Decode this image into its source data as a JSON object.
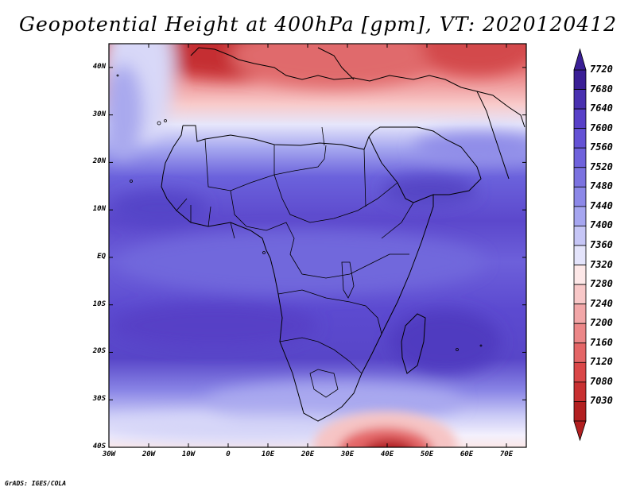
{
  "title": "Geopotential Height at 400hPa [gpm], VT: 2020120412",
  "credit": "GrADS: IGES/COLA",
  "map": {
    "variable": "Geopotential Height",
    "level": "400hPa",
    "units": "gpm",
    "valid_time": "2020120412",
    "lon_range": [
      -30,
      75
    ],
    "lat_range": [
      -40,
      45
    ],
    "lat_labels": [
      {
        "value": 40,
        "text": "40N"
      },
      {
        "value": 30,
        "text": "30N"
      },
      {
        "value": 20,
        "text": "20N"
      },
      {
        "value": 10,
        "text": "10N"
      },
      {
        "value": 0,
        "text": "EQ"
      },
      {
        "value": -10,
        "text": "10S"
      },
      {
        "value": -20,
        "text": "20S"
      },
      {
        "value": -30,
        "text": "30S"
      },
      {
        "value": -40,
        "text": "40S"
      }
    ],
    "lon_labels": [
      {
        "value": -30,
        "text": "30W"
      },
      {
        "value": -20,
        "text": "20W"
      },
      {
        "value": -10,
        "text": "10W"
      },
      {
        "value": 0,
        "text": "0"
      },
      {
        "value": 10,
        "text": "10E"
      },
      {
        "value": 20,
        "text": "20E"
      },
      {
        "value": 30,
        "text": "30E"
      },
      {
        "value": 40,
        "text": "40E"
      },
      {
        "value": 50,
        "text": "50E"
      },
      {
        "value": 60,
        "text": "60E"
      },
      {
        "value": 70,
        "text": "70E"
      }
    ]
  },
  "colorbar": {
    "labels": [
      "7720",
      "7680",
      "7640",
      "7600",
      "7560",
      "7520",
      "7480",
      "7440",
      "7400",
      "7360",
      "7320",
      "7280",
      "7240",
      "7200",
      "7160",
      "7120",
      "7080",
      "7030"
    ],
    "colors": [
      "#3a1f96",
      "#4931b0",
      "#5840c8",
      "#6452d5",
      "#6f62dc",
      "#7b72e0",
      "#8c88e8",
      "#a6a6f0",
      "#c6c6f6",
      "#e4e4fb",
      "#fde8e8",
      "#f8c8c8",
      "#f2a7a8",
      "#ec8788",
      "#e46667",
      "#da4748",
      "#c83031",
      "#b21f20"
    ]
  }
}
